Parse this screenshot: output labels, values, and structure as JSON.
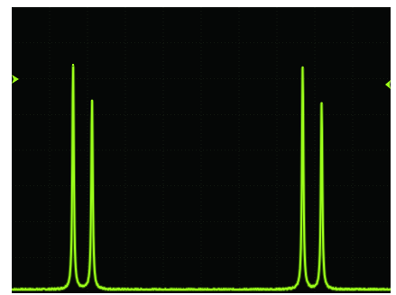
{
  "display": {
    "background_color": "#050706",
    "grid_color": "#1f2a1a",
    "trace_color": "#9dff1a",
    "trace_glow_color": "#6fcc10"
  },
  "icons": {
    "left_marker": "level-marker-icon",
    "right_marker": "level-marker-icon"
  },
  "chart_data": {
    "type": "line",
    "title": "",
    "xlabel": "",
    "ylabel": "",
    "grid": true,
    "xlim": [
      0,
      100
    ],
    "ylim": [
      0,
      1
    ],
    "series": [
      {
        "name": "",
        "peaks": [
          {
            "x": 16.2,
            "height": 0.88,
            "width": 0.55
          },
          {
            "x": 21.2,
            "height": 0.74,
            "width": 0.55
          },
          {
            "x": 76.8,
            "height": 0.87,
            "width": 0.55
          },
          {
            "x": 81.8,
            "height": 0.73,
            "width": 0.55
          }
        ],
        "baseline": 0.0
      }
    ]
  }
}
